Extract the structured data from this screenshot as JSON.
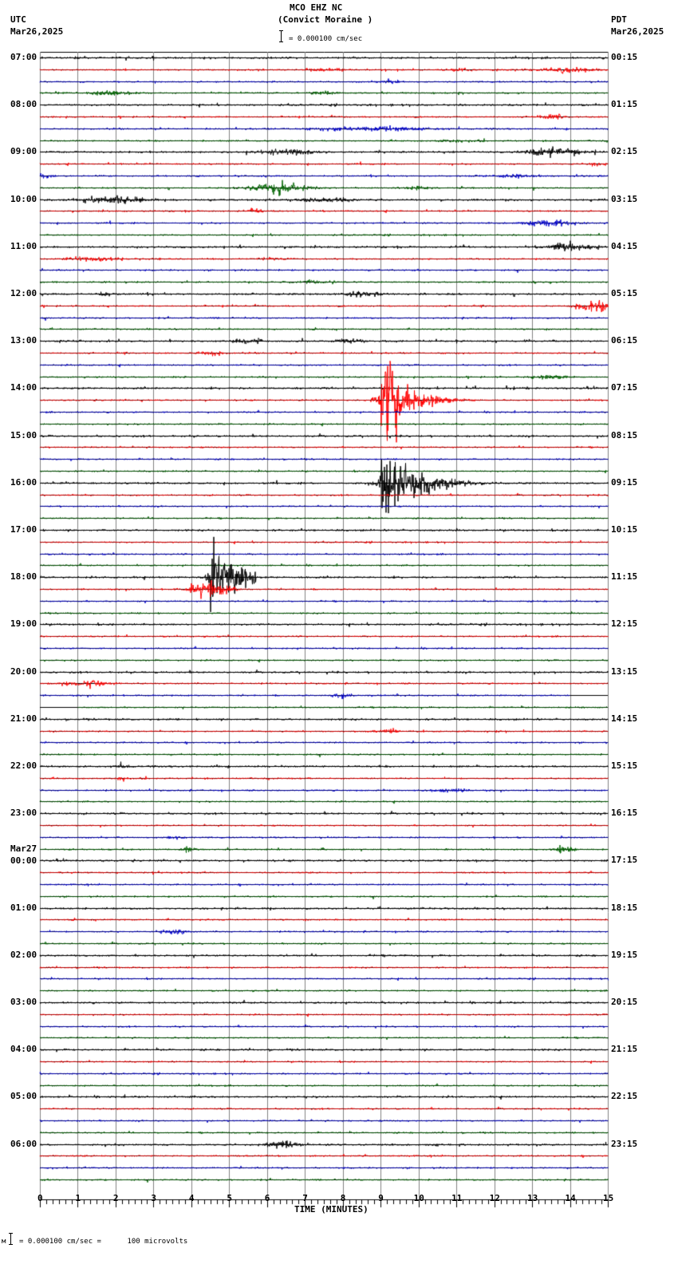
{
  "header": {
    "station": "MCO EHZ NC",
    "location": "(Convict Moraine )",
    "scale_text": "= 0.000100 cm/sec",
    "left_tz": "UTC",
    "left_date": "Mar26,2025",
    "right_tz": "PDT",
    "right_date": "Mar26,2025"
  },
  "footer": {
    "scale_prefix": "м",
    "scale_text": "= 0.000100 cm/sec =      100 microvolts"
  },
  "colors": {
    "trace_cycle": [
      "#000000",
      "#ff0000",
      "#0000cc",
      "#006400"
    ],
    "grid": "#808080",
    "baseline": "#000000"
  },
  "chart_data": {
    "type": "line",
    "title": "MCO EHZ NC (Convict Moraine )",
    "subtitle": "Helicorder seismogram, 15 minutes per line",
    "xlabel": "TIME (MINUTES)",
    "ylabel": "",
    "xlim": [
      0,
      15
    ],
    "x_ticks": [
      "0",
      "1",
      "2",
      "3",
      "4",
      "5",
      "6",
      "7",
      "8",
      "9",
      "10",
      "11",
      "12",
      "13",
      "14",
      "15"
    ],
    "minor_ticks_per_minute": 6,
    "grid": true,
    "amplitude_scale": "0.000100 cm/sec = 100 microvolts",
    "rows": 96,
    "minutes_per_row": 15,
    "left_axis_labels_utc": [
      "07:00",
      "08:00",
      "09:00",
      "10:00",
      "11:00",
      "12:00",
      "13:00",
      "14:00",
      "15:00",
      "16:00",
      "17:00",
      "18:00",
      "19:00",
      "20:00",
      "21:00",
      "22:00",
      "23:00",
      "Mar27 00:00",
      "01:00",
      "02:00",
      "03:00",
      "04:00",
      "05:00",
      "06:00"
    ],
    "right_axis_labels_pdt": [
      "00:15",
      "01:15",
      "02:15",
      "03:15",
      "04:15",
      "05:15",
      "06:15",
      "07:15",
      "08:15",
      "09:15",
      "10:15",
      "11:15",
      "12:15",
      "13:15",
      "14:15",
      "15:15",
      "16:15",
      "17:15",
      "18:15",
      "19:15",
      "20:15",
      "21:15",
      "22:15",
      "23:15"
    ],
    "data_gap": {
      "row": 54,
      "from_minute": 14.0,
      "to_minute": 15,
      "next_row_to_minute": 1.0
    },
    "events": [
      {
        "row": 1,
        "minute": 13.8,
        "amp": 6,
        "dur": 1.5
      },
      {
        "row": 1,
        "minute": 7.5,
        "amp": 3,
        "dur": 1.0
      },
      {
        "row": 1,
        "minute": 11,
        "amp": 4,
        "dur": 0.6
      },
      {
        "row": 2,
        "minute": 9.3,
        "amp": 4,
        "dur": 0.6
      },
      {
        "row": 3,
        "minute": 1.8,
        "amp": 4,
        "dur": 1.5
      },
      {
        "row": 3,
        "minute": 7.5,
        "amp": 3,
        "dur": 0.8
      },
      {
        "row": 5,
        "minute": 13.5,
        "amp": 4,
        "dur": 0.8
      },
      {
        "row": 6,
        "minute": 8.8,
        "amp": 5,
        "dur": 3.0
      },
      {
        "row": 7,
        "minute": 11,
        "amp": 3,
        "dur": 1.0
      },
      {
        "row": 8,
        "minute": 6.5,
        "amp": 7,
        "dur": 1.2
      },
      {
        "row": 8,
        "minute": 13.6,
        "amp": 10,
        "dur": 1.4
      },
      {
        "row": 9,
        "minute": 14.7,
        "amp": 5,
        "dur": 0.5
      },
      {
        "row": 10,
        "minute": 0.1,
        "amp": 5,
        "dur": 0.4
      },
      {
        "row": 10,
        "minute": 12.5,
        "amp": 3,
        "dur": 1.5
      },
      {
        "row": 11,
        "minute": 6.3,
        "amp": 12,
        "dur": 1.5
      },
      {
        "row": 11,
        "minute": 10,
        "amp": 4,
        "dur": 0.8
      },
      {
        "row": 12,
        "minute": 2.0,
        "amp": 9,
        "dur": 1.5
      },
      {
        "row": 12,
        "minute": 7.5,
        "amp": 5,
        "dur": 1.5
      },
      {
        "row": 13,
        "minute": 5.8,
        "amp": 5,
        "dur": 0.5
      },
      {
        "row": 14,
        "minute": 13.5,
        "amp": 6,
        "dur": 1.5
      },
      {
        "row": 16,
        "minute": 14.0,
        "amp": 10,
        "dur": 1.0
      },
      {
        "row": 17,
        "minute": 1.3,
        "amp": 5,
        "dur": 1.5
      },
      {
        "row": 17,
        "minute": 6.0,
        "amp": 4,
        "dur": 0.6
      },
      {
        "row": 19,
        "minute": 7.2,
        "amp": 4,
        "dur": 1.0
      },
      {
        "row": 20,
        "minute": 1.7,
        "amp": 4,
        "dur": 0.5
      },
      {
        "row": 20,
        "minute": 8.5,
        "amp": 4,
        "dur": 1.0
      },
      {
        "row": 21,
        "minute": 14.6,
        "amp": 14,
        "dur": 0.8
      },
      {
        "row": 24,
        "minute": 5.5,
        "amp": 6,
        "dur": 0.8
      },
      {
        "row": 24,
        "minute": 8.2,
        "amp": 4,
        "dur": 0.8
      },
      {
        "row": 25,
        "minute": 4.5,
        "amp": 6,
        "dur": 0.6
      },
      {
        "row": 27,
        "minute": 13.5,
        "amp": 4,
        "dur": 1.0
      },
      {
        "row": 29,
        "minute": 9.0,
        "amp": 120,
        "dur": 2.5,
        "kind": "quake"
      },
      {
        "row": 36,
        "minute": 9.0,
        "amp": 95,
        "dur": 3.5,
        "kind": "quake"
      },
      {
        "row": 36,
        "minute": 10.2,
        "amp": 10,
        "dur": 2.0
      },
      {
        "row": 44,
        "minute": 4.5,
        "amp": 95,
        "dur": 1.2,
        "kind": "quake"
      },
      {
        "row": 45,
        "minute": 4.5,
        "amp": 20,
        "dur": 1.0
      },
      {
        "row": 53,
        "minute": 1.2,
        "amp": 8,
        "dur": 1.2
      },
      {
        "row": 54,
        "minute": 8.0,
        "amp": 6,
        "dur": 0.5
      },
      {
        "row": 57,
        "minute": 9.2,
        "amp": 4,
        "dur": 0.8
      },
      {
        "row": 60,
        "minute": 2.2,
        "amp": 5,
        "dur": 0.4
      },
      {
        "row": 61,
        "minute": 2.2,
        "amp": 6,
        "dur": 0.3
      },
      {
        "row": 62,
        "minute": 10.8,
        "amp": 4,
        "dur": 1.2
      },
      {
        "row": 66,
        "minute": 3.5,
        "amp": 3,
        "dur": 0.6
      },
      {
        "row": 67,
        "minute": 3.9,
        "amp": 8,
        "dur": 0.4
      },
      {
        "row": 67,
        "minute": 13.8,
        "amp": 9,
        "dur": 0.5
      },
      {
        "row": 74,
        "minute": 3.5,
        "amp": 6,
        "dur": 0.6
      },
      {
        "row": 92,
        "minute": 6.4,
        "amp": 8,
        "dur": 0.8
      }
    ]
  }
}
